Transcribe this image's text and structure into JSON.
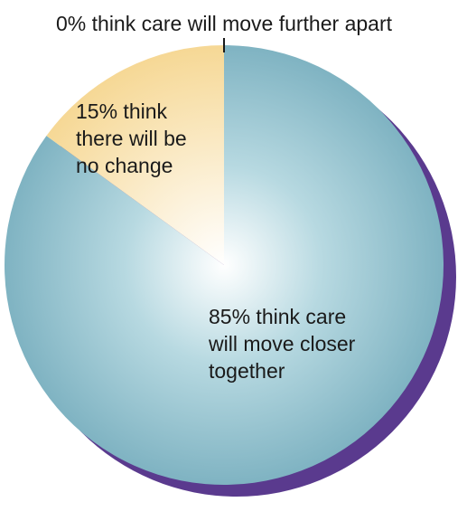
{
  "chart_data": {
    "type": "pie",
    "start": "12 o'clock, clockwise",
    "slices": [
      {
        "value": 85,
        "label_lines": [
          "85% think care",
          "will move closer",
          "together"
        ],
        "color": "#7fb3c2"
      },
      {
        "value": 15,
        "label_lines": [
          "15% think",
          "there will be",
          "no change"
        ],
        "color": "#f6d895"
      },
      {
        "value": 0,
        "label_lines": [
          "0% think care will move further apart"
        ],
        "color": "#ffffff"
      }
    ],
    "shadow_color": "#5a3a8e",
    "highlight_color": "#ffffff"
  }
}
